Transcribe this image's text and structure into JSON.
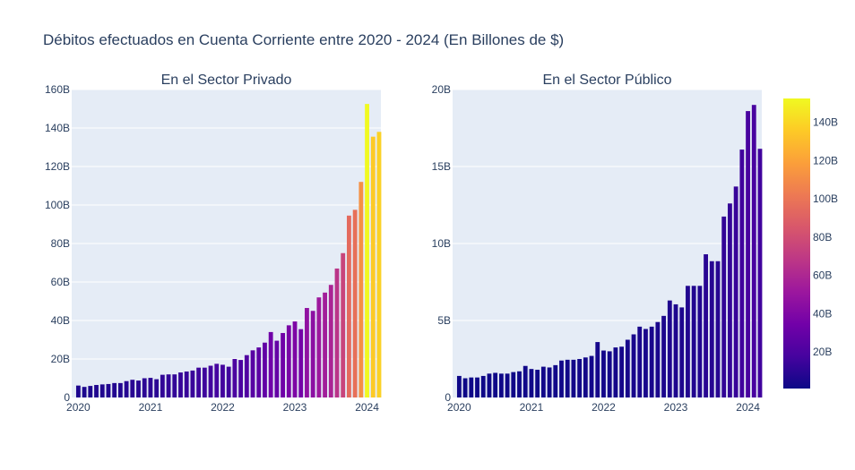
{
  "title": "Débitos efectuados en Cuenta Corriente entre 2020 - 2024 (En Billones de $)",
  "colorscale": [
    "#0d0887",
    "#46039f",
    "#7201a8",
    "#9c179e",
    "#bd3786",
    "#d8576b",
    "#ed7953",
    "#fb9f3a",
    "#fdca26",
    "#f0f921"
  ],
  "chart_data": [
    {
      "type": "bar",
      "subtitle": "En el Sector Privado",
      "x_start": "2020-01",
      "x_ticks": [
        "2020",
        "2021",
        "2022",
        "2023",
        "2024"
      ],
      "y_ticks": [
        "0",
        "20B",
        "40B",
        "60B",
        "80B",
        "100B",
        "120B",
        "140B",
        "160B"
      ],
      "ylim": [
        0,
        160
      ],
      "values": [
        6.2,
        5.5,
        6,
        6.5,
        6.8,
        7,
        7.5,
        7.5,
        8.5,
        9.2,
        8.8,
        10,
        10.2,
        9.5,
        11.8,
        12,
        12,
        13,
        13.5,
        14,
        15.5,
        15.5,
        16.5,
        17.5,
        17,
        16,
        20,
        19.5,
        22,
        24.5,
        26,
        28.5,
        34,
        29.5,
        33.5,
        37.5,
        39.5,
        35.5,
        46.5,
        45,
        52,
        54.5,
        58.5,
        67,
        75,
        94.5,
        97.5,
        112,
        152.5,
        135.5,
        138
      ]
    },
    {
      "type": "bar",
      "subtitle": "En el Sector Público",
      "x_start": "2020-01",
      "x_ticks": [
        "2020",
        "2021",
        "2022",
        "2023",
        "2024"
      ],
      "y_ticks": [
        "0",
        "5B",
        "10B",
        "15B",
        "20B"
      ],
      "ylim": [
        0,
        20
      ],
      "values": [
        1.4,
        1.25,
        1.3,
        1.3,
        1.4,
        1.55,
        1.6,
        1.55,
        1.55,
        1.65,
        1.7,
        2.05,
        1.85,
        1.8,
        2.0,
        1.95,
        2.1,
        2.4,
        2.45,
        2.45,
        2.5,
        2.6,
        2.7,
        3.6,
        3.05,
        3.0,
        3.25,
        3.3,
        3.75,
        4.1,
        4.6,
        4.45,
        4.6,
        4.9,
        5.3,
        6.3,
        6.05,
        5.85,
        7.25,
        7.25,
        7.25,
        9.3,
        8.85,
        8.85,
        11.75,
        12.6,
        13.7,
        16.1,
        18.6,
        19.0,
        16.15
      ]
    }
  ],
  "colorbar": {
    "ticks": [
      "20B",
      "40B",
      "60B",
      "80B",
      "100B",
      "120B",
      "140B"
    ],
    "range": [
      0.9,
      152.5
    ]
  }
}
